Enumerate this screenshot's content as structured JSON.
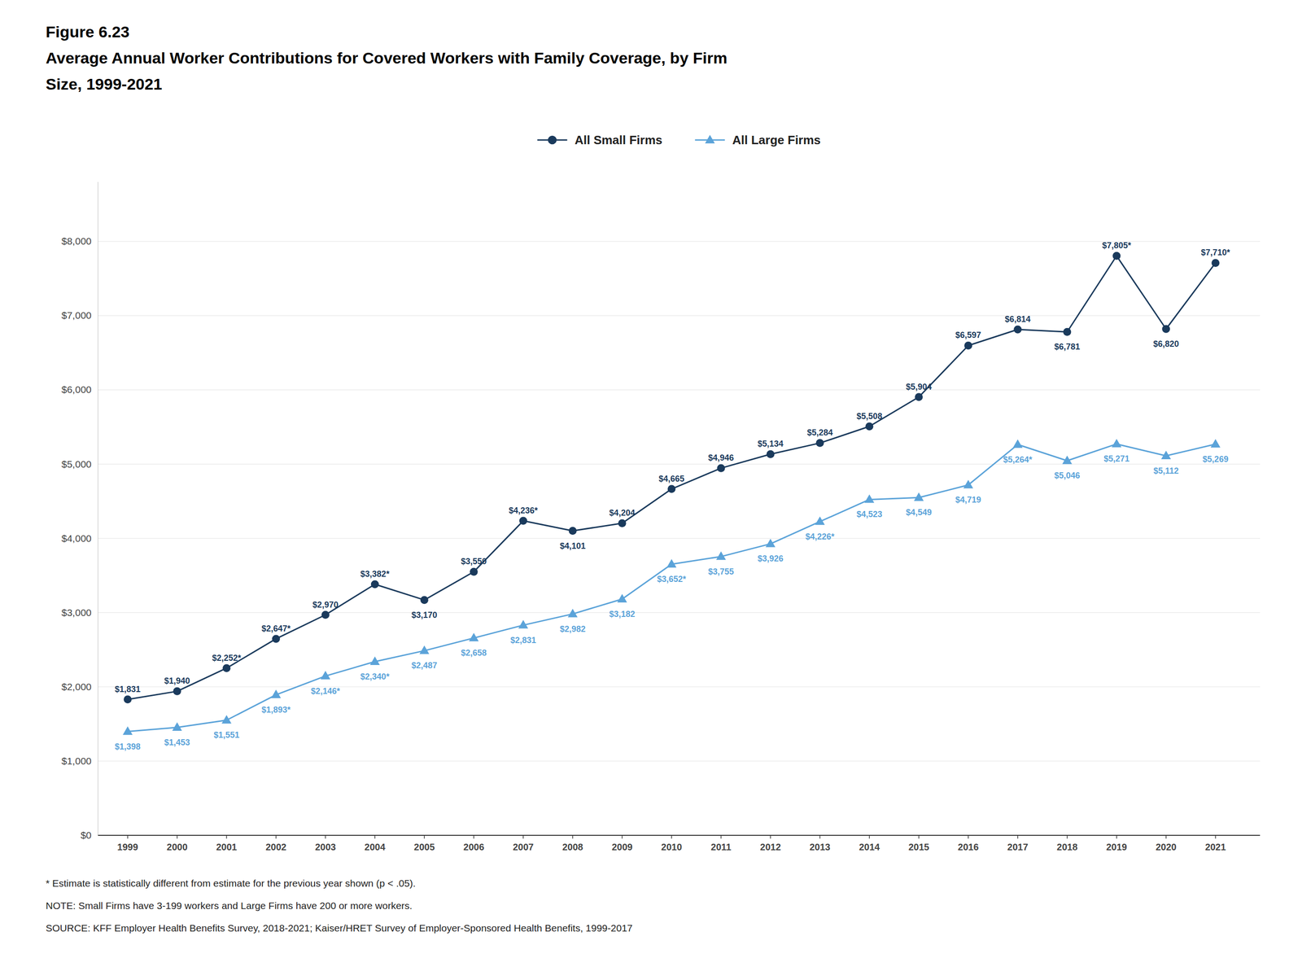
{
  "chart_data": {
    "type": "line",
    "title": "Figure 6.23",
    "subtitle": [
      "Average Annual Worker Contributions for Covered Workers with Family Coverage, by Firm",
      "Size, 1999-2021"
    ],
    "annotations": [
      "* Estimate is statistically different from estimate for the previous year shown (p < .05).",
      "NOTE: Small Firms have 3-199 workers and Large Firms have 200 or more workers.",
      "SOURCE: KFF Employer Health Benefits Survey, 2018-2021; Kaiser/HRET Survey of Employer-Sponsored Health Benefits, 1999-2017"
    ],
    "x": [
      1999,
      2000,
      2001,
      2002,
      2003,
      2004,
      2005,
      2006,
      2007,
      2008,
      2009,
      2010,
      2011,
      2012,
      2013,
      2014,
      2015,
      2016,
      2017,
      2018,
      2019,
      2020,
      2021
    ],
    "xlim": [
      1998.4,
      2021.9
    ],
    "xticks": [
      1999,
      2000,
      2001,
      2002,
      2003,
      2004,
      2005,
      2006,
      2007,
      2008,
      2009,
      2010,
      2011,
      2012,
      2013,
      2014,
      2015,
      2016,
      2017,
      2018,
      2019,
      2020,
      2021
    ],
    "ylim": [
      0,
      8800
    ],
    "yticks": [
      {
        "value": 0,
        "label": "$0"
      },
      {
        "value": 1000,
        "label": "$1,000"
      },
      {
        "value": 2000,
        "label": "$2,000"
      },
      {
        "value": 3000,
        "label": "$3,000"
      },
      {
        "value": 4000,
        "label": "$4,000"
      },
      {
        "value": 5000,
        "label": "$5,000"
      },
      {
        "value": 6000,
        "label": "$6,000"
      },
      {
        "value": 7000,
        "label": "$7,000"
      },
      {
        "value": 8000,
        "label": "$8,000"
      }
    ],
    "grid": true,
    "legend": "upper center",
    "data_labels": true,
    "series": [
      {
        "name": "All Small Firms",
        "color": "#1a3a5c",
        "marker": "circle",
        "values": [
          1831,
          1940,
          2252,
          2647,
          2970,
          3382,
          3170,
          3550,
          4236,
          4101,
          4204,
          4665,
          4946,
          5134,
          5284,
          5508,
          5904,
          6597,
          6814,
          6781,
          7805,
          6820,
          7710
        ],
        "value_labels": [
          "$1,831",
          "$1,940",
          "$2,252*",
          "$2,647*",
          "$2,970",
          "$3,382*",
          "$3,170",
          "$3,550",
          "$4,236*",
          "$4,101",
          "$4,204",
          "$4,665",
          "$4,946",
          "$5,134",
          "$5,284",
          "$5,508",
          "$5,904",
          "$6,597",
          "$6,814",
          "$6,781",
          "$7,805*",
          "$6,820",
          "$7,710*"
        ]
      },
      {
        "name": "All Large Firms",
        "color": "#5ba3d9",
        "marker": "triangle",
        "values": [
          1398,
          1453,
          1551,
          1893,
          2146,
          2340,
          2487,
          2658,
          2831,
          2982,
          3182,
          3652,
          3755,
          3926,
          4226,
          4523,
          4549,
          4719,
          5264,
          5046,
          5271,
          5112,
          5269
        ],
        "value_labels": [
          "$1,398",
          "$1,453",
          "$1,551",
          "$1,893*",
          "$2,146*",
          "$2,340*",
          "$2,487",
          "$2,658",
          "$2,831",
          "$2,982",
          "$3,182",
          "$3,652*",
          "$3,755",
          "$3,926",
          "$4,226*",
          "$4,523",
          "$4,549",
          "$4,719",
          "$5,264*",
          "$5,046",
          "$5,271",
          "$5,112",
          "$5,269"
        ]
      }
    ]
  }
}
